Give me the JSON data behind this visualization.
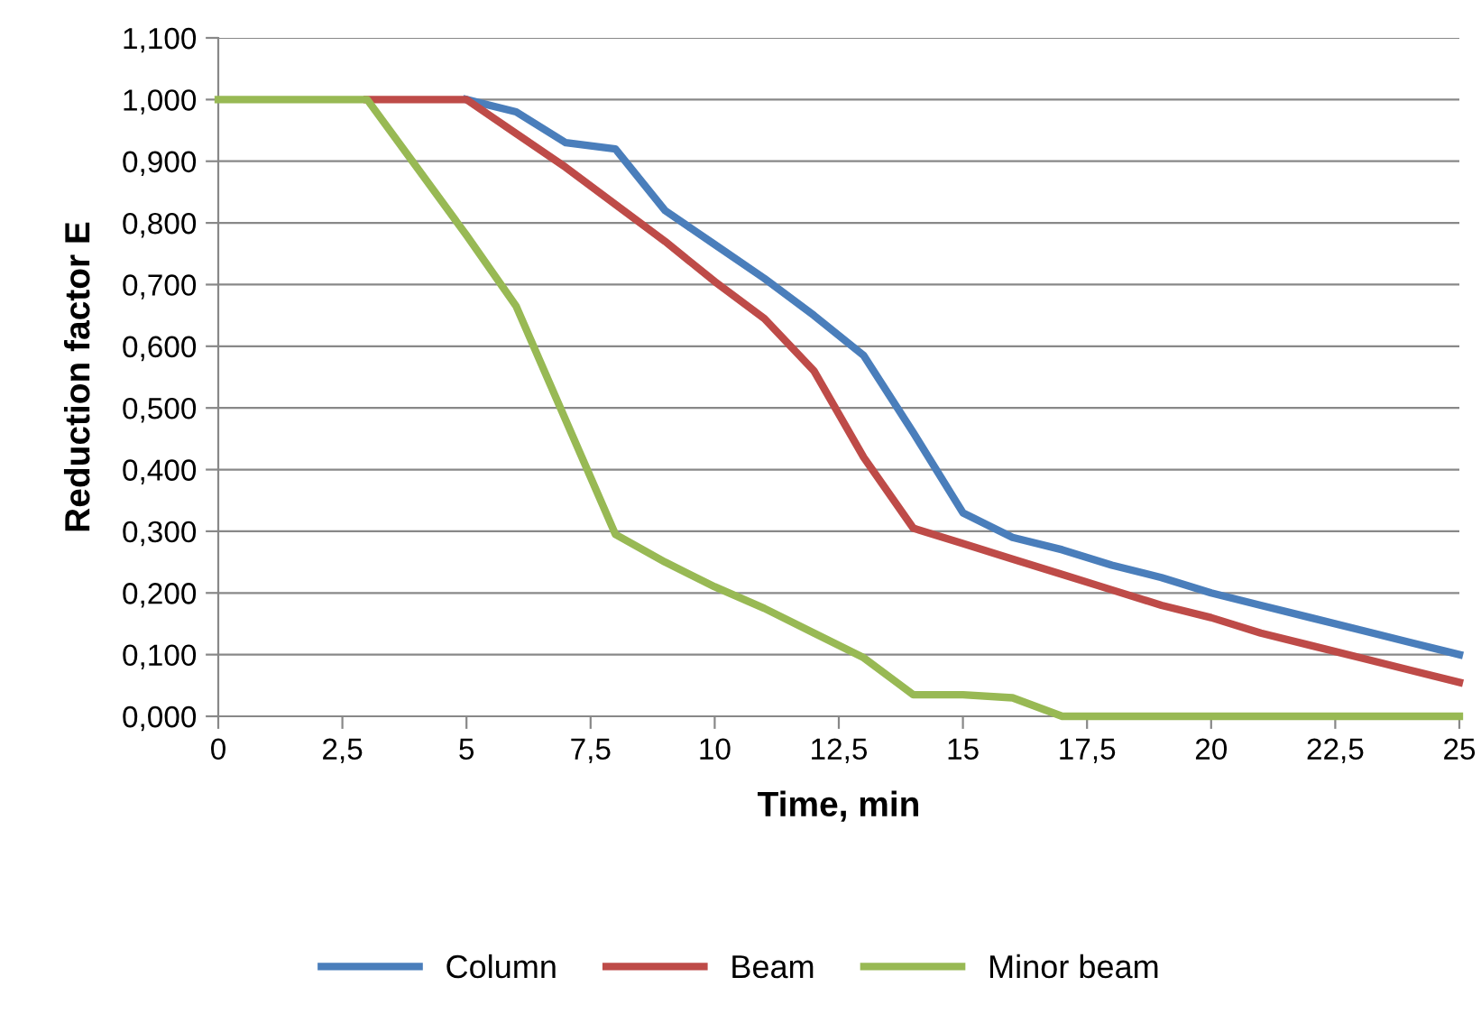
{
  "chart_data": {
    "type": "line",
    "xlabel": "Time, min",
    "ylabel": "Reduction factor E",
    "x": [
      0,
      1,
      2,
      3,
      4,
      5,
      6,
      7,
      8,
      9,
      10,
      11,
      12,
      13,
      14,
      15,
      16,
      17,
      18,
      19,
      20,
      21,
      22,
      23,
      24,
      25
    ],
    "series": [
      {
        "name": "Column",
        "color": "#4a7ebb",
        "values": [
          null,
          null,
          null,
          null,
          null,
          1,
          0.98,
          0.93,
          0.92,
          0.82,
          0.765,
          0.71,
          0.65,
          0.585,
          0.46,
          0.33,
          0.29,
          0.27,
          0.245,
          0.225,
          0.2,
          0.18,
          0.16,
          0.14,
          0.12,
          0.1
        ]
      },
      {
        "name": "Beam",
        "color": "#be4b48",
        "values": [
          null,
          null,
          null,
          1,
          1,
          1,
          0.945,
          0.89,
          0.83,
          0.77,
          0.705,
          0.645,
          0.56,
          0.42,
          0.305,
          0.28,
          0.255,
          0.23,
          0.205,
          0.18,
          0.16,
          0.135,
          0.115,
          0.095,
          0.075,
          0.055
        ]
      },
      {
        "name": "Minor beam",
        "color": "#98b954",
        "values": [
          1,
          1,
          1,
          1,
          0.89,
          0.78,
          0.665,
          0.48,
          0.295,
          0.25,
          0.21,
          0.175,
          0.135,
          0.095,
          0.035,
          0.035,
          0.03,
          0,
          0,
          0,
          0,
          0,
          0,
          0,
          0,
          0
        ]
      }
    ],
    "xlim": [
      0,
      25
    ],
    "xticks": [
      0,
      {
        "value": 2.5,
        "label": "2,5"
      },
      5,
      {
        "value": 7.5,
        "label": "7,5"
      },
      10,
      {
        "value": 12.5,
        "label": "12,5"
      },
      15,
      {
        "value": 17.5,
        "label": "17,5"
      },
      20,
      {
        "value": 22.5,
        "label": "22,5"
      },
      25
    ],
    "ylim": [
      0,
      1.1
    ],
    "yticks": [
      {
        "value": 0,
        "label": "0,000"
      },
      {
        "value": 0.1,
        "label": "0,100"
      },
      {
        "value": 0.2,
        "label": "0,200"
      },
      {
        "value": 0.3,
        "label": "0,300"
      },
      {
        "value": 0.4,
        "label": "0,400"
      },
      {
        "value": 0.5,
        "label": "0,500"
      },
      {
        "value": 0.6,
        "label": "0,600"
      },
      {
        "value": 0.7,
        "label": "0,700"
      },
      {
        "value": 0.8,
        "label": "0,800"
      },
      {
        "value": 0.9,
        "label": "0,900"
      },
      {
        "value": 1.0,
        "label": "1,000"
      },
      {
        "value": 1.1,
        "label": "1,100"
      }
    ],
    "grid": "y",
    "legend": "bottom",
    "marker": "none",
    "line_style": "solid"
  }
}
